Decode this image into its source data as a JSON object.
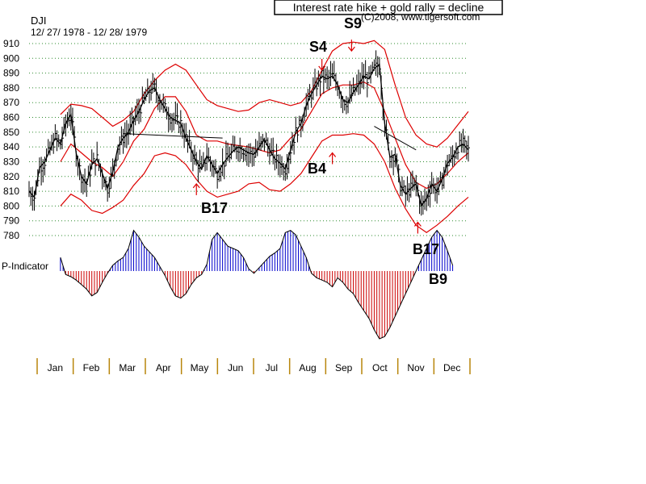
{
  "chart_data": {
    "type": "line",
    "ticker": "DJI",
    "date_range": "12/ 27/ 1978 - 12/ 28/ 1979",
    "headline": "Interest rate hike + gold rally = decline",
    "copyright": "(C)2008, www.tigersoft.com",
    "indicator_label": "P-Indicator",
    "y_ticks": [
      910,
      900,
      890,
      880,
      870,
      860,
      850,
      840,
      830,
      820,
      810,
      800,
      790,
      780
    ],
    "y_tick_labels": [
      "910",
      "900",
      "890",
      "880",
      "870",
      "860",
      "850",
      "840",
      "830",
      "820",
      "810",
      "800",
      "790",
      "780"
    ],
    "months": [
      "Jan",
      "Feb",
      "Mar",
      "Apr",
      "May",
      "Jun",
      "Jul",
      "Aug",
      "Sep",
      "Oct",
      "Nov",
      "Dec"
    ],
    "x_range": [
      0,
      252
    ],
    "y_range": [
      775,
      915
    ],
    "price": [
      [
        0,
        810
      ],
      [
        3,
        806
      ],
      [
        6,
        826
      ],
      [
        9,
        830
      ],
      [
        12,
        838
      ],
      [
        15,
        846
      ],
      [
        18,
        842
      ],
      [
        21,
        856
      ],
      [
        24,
        862
      ],
      [
        27,
        836
      ],
      [
        30,
        820
      ],
      [
        33,
        815
      ],
      [
        36,
        828
      ],
      [
        39,
        832
      ],
      [
        42,
        822
      ],
      [
        45,
        812
      ],
      [
        48,
        823
      ],
      [
        51,
        840
      ],
      [
        54,
        846
      ],
      [
        57,
        850
      ],
      [
        60,
        858
      ],
      [
        63,
        864
      ],
      [
        66,
        872
      ],
      [
        69,
        878
      ],
      [
        72,
        880
      ],
      [
        75,
        872
      ],
      [
        78,
        866
      ],
      [
        81,
        860
      ],
      [
        84,
        858
      ],
      [
        87,
        856
      ],
      [
        90,
        846
      ],
      [
        93,
        838
      ],
      [
        96,
        830
      ],
      [
        99,
        825
      ],
      [
        102,
        834
      ],
      [
        105,
        828
      ],
      [
        108,
        822
      ],
      [
        111,
        828
      ],
      [
        114,
        833
      ],
      [
        117,
        837
      ],
      [
        120,
        840
      ],
      [
        123,
        838
      ],
      [
        126,
        836
      ],
      [
        129,
        835
      ],
      [
        132,
        840
      ],
      [
        135,
        845
      ],
      [
        138,
        838
      ],
      [
        141,
        832
      ],
      [
        144,
        829
      ],
      [
        147,
        825
      ],
      [
        150,
        838
      ],
      [
        153,
        850
      ],
      [
        156,
        856
      ],
      [
        159,
        868
      ],
      [
        162,
        876
      ],
      [
        165,
        882
      ],
      [
        168,
        888
      ],
      [
        171,
        886
      ],
      [
        174,
        888
      ],
      [
        177,
        882
      ],
      [
        180,
        872
      ],
      [
        183,
        870
      ],
      [
        186,
        877
      ],
      [
        189,
        882
      ],
      [
        192,
        888
      ],
      [
        195,
        886
      ],
      [
        198,
        893
      ],
      [
        201,
        896
      ],
      [
        204,
        856
      ],
      [
        207,
        833
      ],
      [
        210,
        835
      ],
      [
        213,
        814
      ],
      [
        216,
        808
      ],
      [
        219,
        812
      ],
      [
        222,
        815
      ],
      [
        225,
        800
      ],
      [
        228,
        805
      ],
      [
        231,
        815
      ],
      [
        234,
        810
      ],
      [
        237,
        818
      ],
      [
        240,
        829
      ],
      [
        243,
        833
      ],
      [
        246,
        840
      ],
      [
        249,
        842
      ],
      [
        252,
        838
      ]
    ],
    "upper_band": [
      [
        18,
        862
      ],
      [
        24,
        869
      ],
      [
        30,
        868
      ],
      [
        36,
        866
      ],
      [
        42,
        860
      ],
      [
        48,
        854
      ],
      [
        54,
        858
      ],
      [
        60,
        864
      ],
      [
        66,
        876
      ],
      [
        72,
        885
      ],
      [
        78,
        892
      ],
      [
        84,
        896
      ],
      [
        90,
        892
      ],
      [
        96,
        882
      ],
      [
        102,
        872
      ],
      [
        108,
        868
      ],
      [
        114,
        866
      ],
      [
        120,
        864
      ],
      [
        126,
        865
      ],
      [
        132,
        870
      ],
      [
        138,
        872
      ],
      [
        144,
        870
      ],
      [
        150,
        868
      ],
      [
        156,
        870
      ],
      [
        162,
        878
      ],
      [
        168,
        892
      ],
      [
        174,
        905
      ],
      [
        180,
        910
      ],
      [
        186,
        911
      ],
      [
        192,
        910
      ],
      [
        198,
        912
      ],
      [
        204,
        906
      ],
      [
        210,
        882
      ],
      [
        216,
        860
      ],
      [
        222,
        848
      ],
      [
        228,
        842
      ],
      [
        234,
        840
      ],
      [
        240,
        846
      ],
      [
        246,
        855
      ],
      [
        252,
        864
      ]
    ],
    "middle_band": [
      [
        18,
        830
      ],
      [
        24,
        842
      ],
      [
        30,
        836
      ],
      [
        36,
        830
      ],
      [
        42,
        826
      ],
      [
        48,
        820
      ],
      [
        54,
        830
      ],
      [
        60,
        844
      ],
      [
        66,
        852
      ],
      [
        72,
        866
      ],
      [
        78,
        874
      ],
      [
        84,
        874
      ],
      [
        90,
        864
      ],
      [
        96,
        848
      ],
      [
        102,
        844
      ],
      [
        108,
        844
      ],
      [
        114,
        842
      ],
      [
        120,
        841
      ],
      [
        126,
        840
      ],
      [
        132,
        838
      ],
      [
        138,
        836
      ],
      [
        144,
        838
      ],
      [
        150,
        846
      ],
      [
        156,
        852
      ],
      [
        162,
        864
      ],
      [
        168,
        876
      ],
      [
        174,
        880
      ],
      [
        180,
        882
      ],
      [
        186,
        882
      ],
      [
        192,
        884
      ],
      [
        198,
        880
      ],
      [
        204,
        864
      ],
      [
        210,
        846
      ],
      [
        216,
        828
      ],
      [
        222,
        816
      ],
      [
        228,
        812
      ],
      [
        234,
        815
      ],
      [
        240,
        822
      ],
      [
        246,
        830
      ],
      [
        252,
        836
      ]
    ],
    "lower_band": [
      [
        18,
        800
      ],
      [
        24,
        808
      ],
      [
        30,
        804
      ],
      [
        36,
        797
      ],
      [
        42,
        795
      ],
      [
        48,
        799
      ],
      [
        54,
        804
      ],
      [
        60,
        814
      ],
      [
        66,
        822
      ],
      [
        72,
        834
      ],
      [
        78,
        836
      ],
      [
        84,
        834
      ],
      [
        90,
        828
      ],
      [
        96,
        818
      ],
      [
        102,
        810
      ],
      [
        108,
        806
      ],
      [
        114,
        808
      ],
      [
        120,
        810
      ],
      [
        126,
        815
      ],
      [
        132,
        816
      ],
      [
        138,
        811
      ],
      [
        144,
        810
      ],
      [
        150,
        815
      ],
      [
        156,
        822
      ],
      [
        162,
        833
      ],
      [
        168,
        844
      ],
      [
        174,
        848
      ],
      [
        180,
        848
      ],
      [
        186,
        849
      ],
      [
        192,
        848
      ],
      [
        198,
        842
      ],
      [
        204,
        830
      ],
      [
        210,
        812
      ],
      [
        216,
        798
      ],
      [
        222,
        787
      ],
      [
        228,
        782
      ],
      [
        234,
        787
      ],
      [
        240,
        793
      ],
      [
        246,
        800
      ],
      [
        252,
        806
      ]
    ],
    "indicator": [
      [
        18,
        12
      ],
      [
        21,
        -3
      ],
      [
        24,
        -5
      ],
      [
        27,
        -8
      ],
      [
        30,
        -12
      ],
      [
        33,
        -16
      ],
      [
        36,
        -22
      ],
      [
        39,
        -19
      ],
      [
        42,
        -10
      ],
      [
        45,
        -2
      ],
      [
        48,
        5
      ],
      [
        51,
        9
      ],
      [
        54,
        12
      ],
      [
        57,
        20
      ],
      [
        60,
        36
      ],
      [
        63,
        30
      ],
      [
        66,
        22
      ],
      [
        69,
        17
      ],
      [
        72,
        12
      ],
      [
        75,
        4
      ],
      [
        78,
        -4
      ],
      [
        81,
        -14
      ],
      [
        84,
        -22
      ],
      [
        87,
        -24
      ],
      [
        90,
        -20
      ],
      [
        93,
        -12
      ],
      [
        96,
        -6
      ],
      [
        99,
        -3
      ],
      [
        102,
        6
      ],
      [
        105,
        28
      ],
      [
        108,
        34
      ],
      [
        111,
        28
      ],
      [
        114,
        22
      ],
      [
        117,
        20
      ],
      [
        120,
        18
      ],
      [
        123,
        12
      ],
      [
        126,
        2
      ],
      [
        129,
        -2
      ],
      [
        132,
        3
      ],
      [
        135,
        8
      ],
      [
        138,
        13
      ],
      [
        141,
        16
      ],
      [
        144,
        20
      ],
      [
        147,
        34
      ],
      [
        150,
        36
      ],
      [
        153,
        32
      ],
      [
        156,
        22
      ],
      [
        159,
        12
      ],
      [
        162,
        -2
      ],
      [
        165,
        -6
      ],
      [
        168,
        -8
      ],
      [
        171,
        -10
      ],
      [
        174,
        -14
      ],
      [
        177,
        -6
      ],
      [
        180,
        -10
      ],
      [
        183,
        -16
      ],
      [
        186,
        -20
      ],
      [
        189,
        -28
      ],
      [
        192,
        -35
      ],
      [
        195,
        -42
      ],
      [
        198,
        -52
      ],
      [
        201,
        -60
      ],
      [
        204,
        -58
      ],
      [
        207,
        -50
      ],
      [
        210,
        -40
      ],
      [
        213,
        -30
      ],
      [
        216,
        -20
      ],
      [
        219,
        -10
      ],
      [
        222,
        0
      ],
      [
        225,
        10
      ],
      [
        228,
        20
      ],
      [
        231,
        30
      ],
      [
        234,
        36
      ],
      [
        237,
        30
      ],
      [
        240,
        18
      ],
      [
        243,
        5
      ]
    ],
    "divergence_lines": [
      [
        [
          54,
          849
        ],
        [
          111,
          846
        ]
      ],
      [
        [
          198,
          854
        ],
        [
          222,
          838
        ]
      ]
    ],
    "arrows_down": [
      [
        168,
        892
      ],
      [
        185,
        905
      ]
    ],
    "arrows_up": [
      [
        96,
        815
      ],
      [
        174,
        836
      ],
      [
        223,
        789
      ]
    ],
    "signals": [
      "S4",
      "S9",
      "B4",
      "B17",
      "B17",
      "B9"
    ]
  }
}
